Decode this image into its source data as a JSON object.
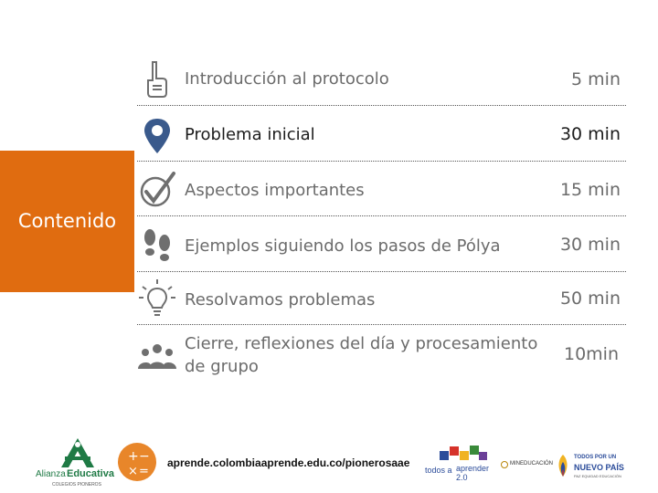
{
  "side": {
    "label": "Contenido"
  },
  "agenda": [
    {
      "icon": "hand-pointing-icon",
      "title": "Introducción al protocolo",
      "duration": "5 min"
    },
    {
      "icon": "location-pin-icon",
      "title": "Problema inicial",
      "duration": "30 min"
    },
    {
      "icon": "checkmark-icon",
      "title": "Aspectos importantes",
      "duration": "15 min"
    },
    {
      "icon": "footprints-icon",
      "title": "Ejemplos siguiendo los pasos de Pólya",
      "duration": "30 min"
    },
    {
      "icon": "lightbulb-icon",
      "title": "Resolvamos problemas",
      "duration": "50 min"
    },
    {
      "icon": "group-icon",
      "title": "Cierre, reflexiones del día y procesamiento de grupo",
      "duration": "10min"
    }
  ],
  "footer": {
    "url": "aprende.colombiaaprende.edu.co/pionerosaae",
    "logos": {
      "alianza_line1": "Alianza",
      "alianza_line2": "Educativa",
      "alianza_tagline": "COLEGIOS PIONEROS",
      "todos_line1": "todos a",
      "todos_line2": "aprender 2.0",
      "mineducacion": "MINEDUCACIÓN",
      "nuevo_pais_line1": "TODOS POR UN",
      "nuevo_pais_line2": "NUEVO PAÍS",
      "nuevo_pais_line3": "PAZ EQUIDAD EDUCACIÓN"
    }
  },
  "colors": {
    "accent": "#e06c10",
    "icon_gray": "#6f6f6f",
    "pin_blue": "#3a5a8c",
    "logo_green": "#1f7a45"
  }
}
